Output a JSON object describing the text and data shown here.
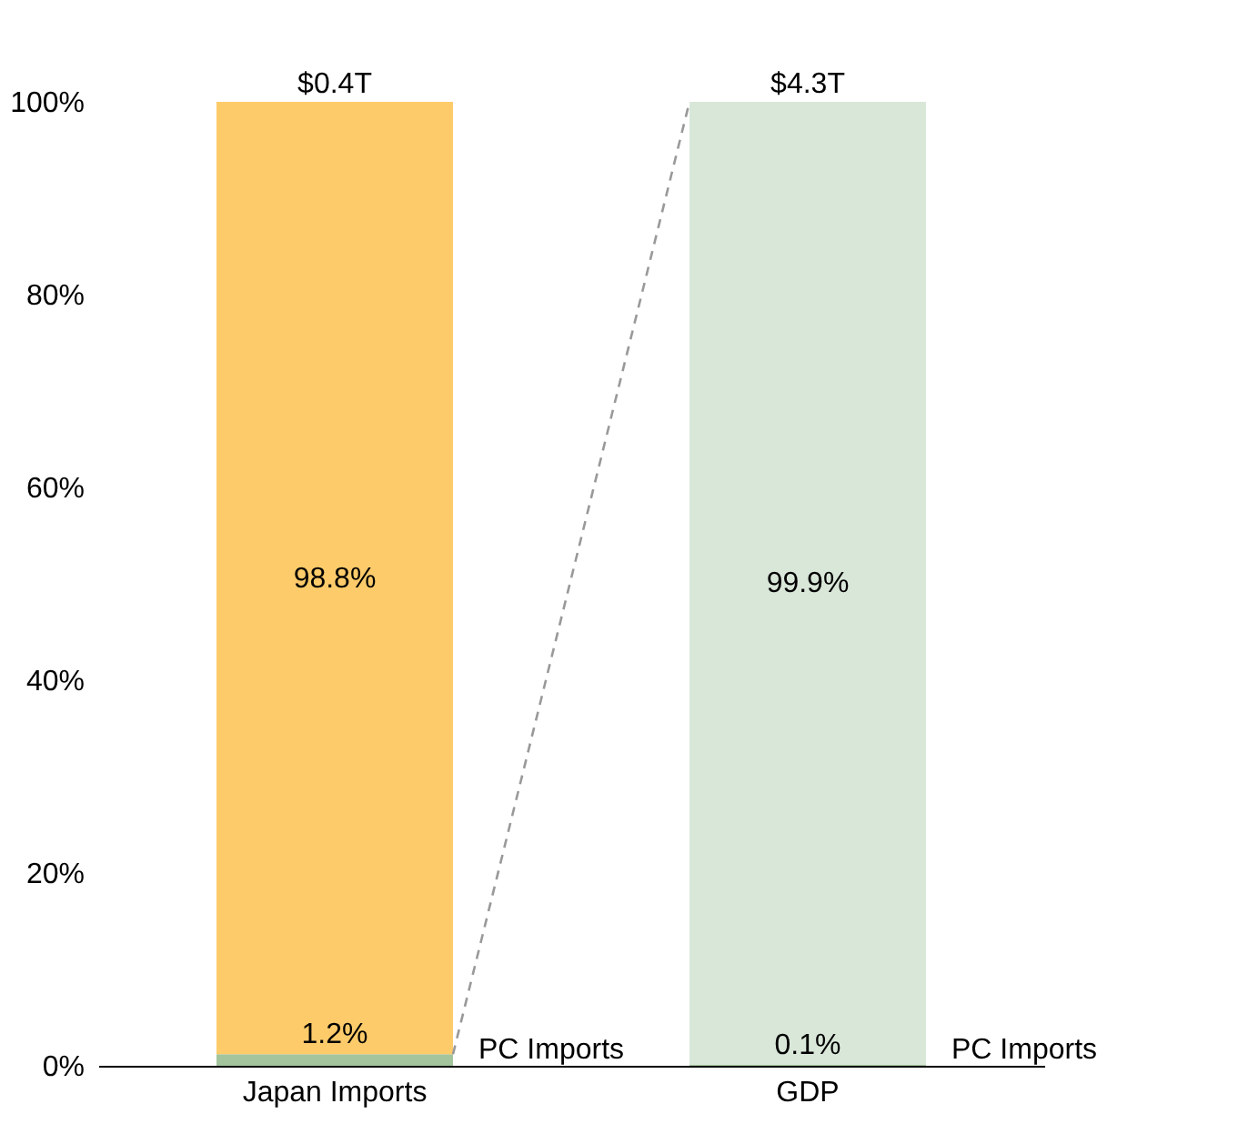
{
  "chart_data": {
    "type": "bar",
    "stacked": true,
    "categories": [
      "Japan Imports",
      "GDP"
    ],
    "series": [
      {
        "name": "PC Imports",
        "colors": [
          "#a3c49d",
          "#a3c49d"
        ],
        "values": [
          1.2,
          0.1
        ],
        "value_labels": [
          "1.2%",
          "0.1%"
        ]
      },
      {
        "colors": [
          "#fdcb6a",
          "#d9e7d9"
        ],
        "values": [
          98.8,
          99.9
        ],
        "value_labels": [
          "98.8%",
          "99.9%"
        ]
      }
    ],
    "annotations": [
      {
        "text": "$0.4T",
        "x": "Japan Imports",
        "y": 100
      },
      {
        "text": "$4.3T",
        "x": "GDP",
        "y": 100
      }
    ],
    "ylim": [
      0,
      100
    ],
    "yticks": [
      {
        "value": 0,
        "label": "0%"
      },
      {
        "value": 20,
        "label": "20%"
      },
      {
        "value": 40,
        "label": "40%"
      },
      {
        "value": 60,
        "label": "60%"
      },
      {
        "value": 80,
        "label": "80%"
      },
      {
        "value": 100,
        "label": "100%"
      }
    ],
    "grid": false
  }
}
